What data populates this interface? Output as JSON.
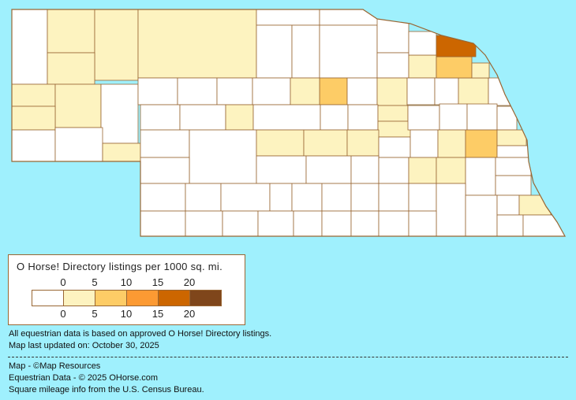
{
  "legend": {
    "title": "O Horse! Directory listings per 1000 sq. mi.",
    "ticks": [
      "0",
      "5",
      "10",
      "15",
      "20"
    ],
    "colors": [
      "#ffffff",
      "#fdf3c0",
      "#fdcc66",
      "#fc9a33",
      "#cc6600",
      "#7f461b"
    ]
  },
  "notes": {
    "line1": "All equestrian data is based on approved O Horse! Directory listings.",
    "line2": "Map last updated on: October 30, 2025"
  },
  "credits": {
    "map": "Map - ©Map Resources",
    "data": "Equestrian Data - © 2025 OHorse.com",
    "census": "Square mileage info from the U.S. Census Bureau."
  },
  "map": {
    "border_color": "#996633",
    "background": "#9ff0fd",
    "county_levels": [
      0,
      1,
      1,
      1,
      1,
      1,
      1,
      1,
      0,
      0,
      0,
      1,
      0,
      0,
      0,
      0,
      0,
      0,
      0,
      1,
      0,
      0,
      0,
      0,
      2,
      1,
      0,
      1,
      0,
      0,
      1,
      0,
      0,
      0,
      1,
      0,
      0,
      0,
      1,
      1,
      0,
      0,
      0,
      0,
      0,
      2,
      1,
      4,
      0,
      0,
      1,
      1,
      1,
      0,
      0,
      1,
      2,
      1,
      0,
      0,
      0,
      0,
      0,
      0,
      1,
      1,
      0,
      0,
      0,
      0,
      0,
      0,
      0,
      0,
      0,
      0,
      0,
      0,
      0,
      0,
      0,
      1,
      0,
      0,
      0,
      0
    ]
  }
}
